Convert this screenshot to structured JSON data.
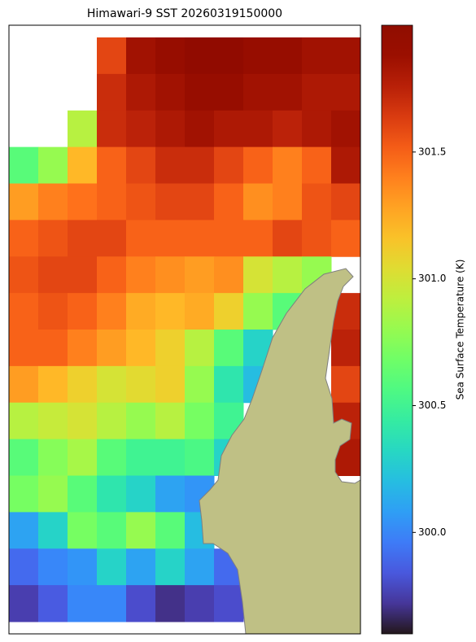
{
  "chart_data": {
    "type": "heatmap",
    "title": "Himawari-9 SST 20260319150000",
    "colorbar_label": "Sea Surface Temperature (K)",
    "colormap": "turbo",
    "clim": [
      299.6,
      302.0
    ],
    "cticks": [
      {
        "value": 300.0,
        "label": "300.0"
      },
      300.5,
      {
        "value": 301.0,
        "label": "301.0"
      },
      301.5
    ],
    "values": [
      [
        null,
        null,
        null,
        301.6,
        301.85,
        301.9,
        301.95,
        301.95,
        301.9,
        301.9,
        301.85,
        301.85
      ],
      [
        null,
        null,
        null,
        301.7,
        301.8,
        301.85,
        301.9,
        301.9,
        301.85,
        301.85,
        301.8,
        301.8
      ],
      [
        null,
        null,
        300.9,
        301.7,
        301.75,
        301.8,
        301.85,
        301.8,
        301.8,
        301.75,
        301.8,
        301.85
      ],
      [
        300.6,
        300.8,
        301.2,
        301.5,
        301.6,
        301.7,
        301.7,
        301.6,
        301.5,
        301.4,
        301.5,
        301.8
      ],
      [
        301.3,
        301.4,
        301.45,
        301.5,
        301.55,
        301.6,
        301.6,
        301.5,
        301.35,
        301.4,
        301.55,
        301.6
      ],
      [
        301.5,
        301.55,
        301.6,
        301.6,
        301.5,
        301.5,
        301.5,
        301.5,
        301.5,
        301.6,
        301.55,
        301.5
      ],
      [
        301.55,
        301.6,
        301.6,
        301.5,
        301.4,
        301.35,
        301.3,
        301.35,
        301.0,
        300.9,
        300.8,
        null
      ],
      [
        301.5,
        301.55,
        301.5,
        301.4,
        301.25,
        301.2,
        301.25,
        301.1,
        300.8,
        300.6,
        null,
        301.7
      ],
      [
        301.5,
        301.5,
        301.4,
        301.3,
        301.2,
        301.1,
        300.9,
        300.6,
        300.3,
        null,
        null,
        301.75
      ],
      [
        301.3,
        301.2,
        301.1,
        301.0,
        301.05,
        301.1,
        300.8,
        300.4,
        300.2,
        null,
        null,
        301.6
      ],
      [
        300.9,
        300.95,
        301.0,
        300.9,
        300.8,
        300.9,
        300.7,
        300.5,
        null,
        null,
        null,
        301.75
      ],
      [
        300.6,
        300.75,
        300.85,
        300.6,
        300.5,
        300.5,
        300.55,
        300.3,
        null,
        null,
        null,
        301.8
      ],
      [
        300.7,
        300.8,
        300.6,
        300.4,
        300.3,
        300.1,
        300.05,
        null,
        null,
        null,
        null,
        null
      ],
      [
        300.1,
        300.3,
        300.7,
        300.6,
        300.8,
        300.6,
        300.2,
        null,
        null,
        null,
        null,
        null
      ],
      [
        299.9,
        300.0,
        300.05,
        300.3,
        300.1,
        300.3,
        300.1,
        299.9,
        null,
        null,
        null,
        null
      ],
      [
        299.75,
        299.85,
        300.0,
        300.0,
        299.8,
        299.7,
        299.75,
        299.8,
        null,
        null,
        null,
        null
      ]
    ]
  }
}
